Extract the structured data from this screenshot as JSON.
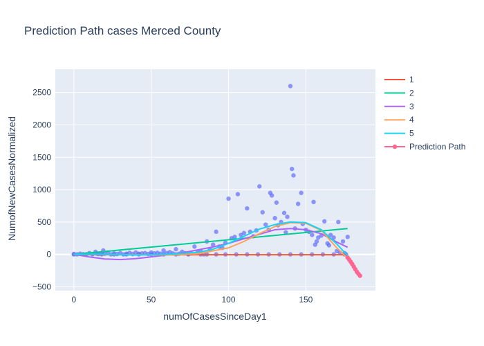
{
  "chart_data": {
    "type": "scatter",
    "title": "Prediction Path cases Merced County",
    "xlabel": "numOfCasesSinceDay1",
    "ylabel": "NumofNewCasesNormalized",
    "xlim": [
      -12,
      195
    ],
    "ylim": [
      -560,
      2860
    ],
    "x_ticks": [
      0,
      50,
      100,
      150
    ],
    "y_ticks": [
      -500,
      0,
      500,
      1000,
      1500,
      2000,
      2500
    ],
    "grid": true,
    "legend_position": "right",
    "background_color": "#e5ecf6",
    "scatter_color": "#636efa",
    "points": [
      [
        0,
        5
      ],
      [
        2,
        0
      ],
      [
        4,
        10
      ],
      [
        6,
        3
      ],
      [
        8,
        0
      ],
      [
        10,
        20
      ],
      [
        12,
        0
      ],
      [
        14,
        40
      ],
      [
        15,
        10
      ],
      [
        16,
        5
      ],
      [
        18,
        15
      ],
      [
        19,
        60
      ],
      [
        20,
        10
      ],
      [
        22,
        30
      ],
      [
        24,
        0
      ],
      [
        26,
        15
      ],
      [
        28,
        5
      ],
      [
        30,
        20
      ],
      [
        32,
        0
      ],
      [
        34,
        10
      ],
      [
        36,
        25
      ],
      [
        38,
        5
      ],
      [
        40,
        30
      ],
      [
        42,
        10
      ],
      [
        44,
        15
      ],
      [
        46,
        20
      ],
      [
        48,
        5
      ],
      [
        50,
        30
      ],
      [
        52,
        15
      ],
      [
        54,
        25
      ],
      [
        56,
        10
      ],
      [
        58,
        60
      ],
      [
        60,
        20
      ],
      [
        62,
        35
      ],
      [
        64,
        15
      ],
      [
        66,
        80
      ],
      [
        68,
        10
      ],
      [
        70,
        40
      ],
      [
        72,
        20
      ],
      [
        74,
        5
      ],
      [
        76,
        15
      ],
      [
        78,
        120
      ],
      [
        80,
        30
      ],
      [
        82,
        50
      ],
      [
        84,
        0
      ],
      [
        86,
        200
      ],
      [
        88,
        80
      ],
      [
        90,
        150
      ],
      [
        92,
        350
      ],
      [
        94,
        120
      ],
      [
        96,
        100
      ],
      [
        98,
        180
      ],
      [
        100,
        860
      ],
      [
        102,
        250
      ],
      [
        104,
        270
      ],
      [
        106,
        930
      ],
      [
        108,
        300
      ],
      [
        110,
        330
      ],
      [
        112,
        710
      ],
      [
        114,
        350
      ],
      [
        116,
        280
      ],
      [
        118,
        370
      ],
      [
        120,
        1050
      ],
      [
        122,
        650
      ],
      [
        124,
        460
      ],
      [
        126,
        380
      ],
      [
        127,
        950
      ],
      [
        128,
        910
      ],
      [
        130,
        560
      ],
      [
        131,
        800
      ],
      [
        132,
        450
      ],
      [
        134,
        500
      ],
      [
        136,
        640
      ],
      [
        137,
        340
      ],
      [
        138,
        580
      ],
      [
        140,
        2600
      ],
      [
        141,
        1320
      ],
      [
        142,
        1220
      ],
      [
        143,
        400
      ],
      [
        145,
        780
      ],
      [
        147,
        950
      ],
      [
        148,
        470
      ],
      [
        150,
        380
      ],
      [
        152,
        350
      ],
      [
        154,
        300
      ],
      [
        155,
        810
      ],
      [
        156,
        150
      ],
      [
        157,
        200
      ],
      [
        158,
        260
      ],
      [
        160,
        290
      ],
      [
        162,
        510
      ],
      [
        164,
        170
      ],
      [
        165,
        140
      ],
      [
        166,
        300
      ],
      [
        168,
        260
      ],
      [
        170,
        50
      ],
      [
        171,
        500
      ],
      [
        172,
        30
      ],
      [
        174,
        200
      ],
      [
        175,
        20
      ],
      [
        176,
        0
      ],
      [
        177,
        270
      ],
      [
        0,
        0
      ],
      [
        8,
        0
      ],
      [
        18,
        0
      ],
      [
        26,
        0
      ],
      [
        34,
        0
      ],
      [
        42,
        0
      ],
      [
        50,
        0
      ],
      [
        58,
        0
      ],
      [
        66,
        0
      ],
      [
        74,
        0
      ],
      [
        82,
        0
      ],
      [
        86,
        0
      ],
      [
        92,
        0
      ],
      [
        98,
        0
      ],
      [
        105,
        0
      ],
      [
        112,
        0
      ],
      [
        119,
        0
      ],
      [
        126,
        0
      ],
      [
        133,
        0
      ],
      [
        140,
        0
      ],
      [
        147,
        0
      ],
      [
        154,
        0
      ],
      [
        161,
        0
      ],
      [
        168,
        0
      ],
      [
        175,
        0
      ]
    ],
    "series": [
      {
        "name": "1",
        "color": "#ef553b",
        "points": [
          [
            0,
            -5
          ],
          [
            177,
            -5
          ]
        ]
      },
      {
        "name": "2",
        "color": "#00cc96",
        "points": [
          [
            0,
            0
          ],
          [
            177,
            400
          ]
        ]
      },
      {
        "name": "3",
        "color": "#ab63fa",
        "points": [
          [
            0,
            0
          ],
          [
            10,
            -40
          ],
          [
            20,
            -70
          ],
          [
            30,
            -80
          ],
          [
            40,
            -65
          ],
          [
            50,
            -40
          ],
          [
            60,
            -10
          ],
          [
            70,
            25
          ],
          [
            80,
            70
          ],
          [
            90,
            115
          ],
          [
            100,
            170
          ],
          [
            110,
            240
          ],
          [
            120,
            310
          ],
          [
            130,
            380
          ],
          [
            140,
            400
          ],
          [
            150,
            380
          ],
          [
            160,
            320
          ],
          [
            170,
            190
          ],
          [
            177,
            110
          ]
        ]
      },
      {
        "name": "4",
        "color": "#ffa15a",
        "points": [
          [
            0,
            0
          ],
          [
            20,
            0
          ],
          [
            40,
            -5
          ],
          [
            60,
            -10
          ],
          [
            80,
            10
          ],
          [
            100,
            100
          ],
          [
            110,
            200
          ],
          [
            120,
            320
          ],
          [
            130,
            430
          ],
          [
            140,
            490
          ],
          [
            150,
            480
          ],
          [
            160,
            370
          ],
          [
            170,
            100
          ],
          [
            177,
            -60
          ]
        ]
      },
      {
        "name": "5",
        "color": "#19d3f3",
        "points": [
          [
            0,
            0
          ],
          [
            20,
            0
          ],
          [
            40,
            -10
          ],
          [
            60,
            0
          ],
          [
            80,
            30
          ],
          [
            90,
            80
          ],
          [
            100,
            170
          ],
          [
            110,
            280
          ],
          [
            120,
            390
          ],
          [
            130,
            460
          ],
          [
            140,
            500
          ],
          [
            150,
            490
          ],
          [
            160,
            380
          ],
          [
            170,
            160
          ],
          [
            177,
            -20
          ]
        ]
      },
      {
        "name": "Prediction Path",
        "color": "#ff6692",
        "points": [
          [
            177,
            -50
          ],
          [
            178,
            -80
          ],
          [
            179,
            -115
          ],
          [
            180,
            -150
          ],
          [
            181,
            -190
          ],
          [
            182,
            -230
          ],
          [
            183,
            -270
          ],
          [
            184,
            -300
          ],
          [
            185,
            -330
          ]
        ]
      }
    ]
  }
}
